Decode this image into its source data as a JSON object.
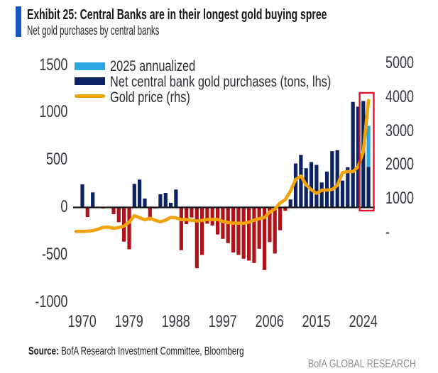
{
  "header": {
    "exhibit_title": "Exhibit 25: Central Banks are in their longest gold buying spree",
    "subtitle": "Net gold purchases by central banks"
  },
  "colors": {
    "accent_bar": "#1757C2",
    "navy_bar": "#0B2264",
    "negative_bar": "#B01217",
    "annualized_bar": "#2AA9E0",
    "gold_line": "#F2A30A",
    "highlight_box": "#E8112D",
    "axis_line": "#111111",
    "tick_text": "#36363e",
    "brand_text": "#8F8F8F"
  },
  "legend": {
    "items": [
      {
        "label": "2025 annualized",
        "swatch": "box",
        "color": "#2AA9E0"
      },
      {
        "label": "Net central bank gold purchases (tons, lhs)",
        "swatch": "box",
        "color": "#0B2264"
      },
      {
        "label": "Gold price (rhs)",
        "swatch": "line",
        "color": "#F2A30A"
      }
    ]
  },
  "chart_data": {
    "type": "bar",
    "title": "Net gold purchases by central banks",
    "x": [
      1970,
      1971,
      1972,
      1973,
      1974,
      1975,
      1976,
      1977,
      1978,
      1979,
      1980,
      1981,
      1982,
      1983,
      1984,
      1985,
      1986,
      1987,
      1988,
      1989,
      1990,
      1991,
      1992,
      1993,
      1994,
      1995,
      1996,
      1997,
      1998,
      1999,
      2000,
      2001,
      2002,
      2003,
      2004,
      2005,
      2006,
      2007,
      2008,
      2009,
      2010,
      2011,
      2012,
      2013,
      2014,
      2015,
      2016,
      2017,
      2018,
      2019,
      2020,
      2021,
      2022,
      2023,
      2024,
      2025
    ],
    "series": [
      {
        "name": "Net central bank gold purchases (tons, lhs)",
        "type": "bar",
        "axis": "left",
        "color_positive": "#0B2264",
        "color_negative": "#B01217",
        "values": [
          240,
          -105,
          155,
          0,
          -15,
          -10,
          -75,
          -160,
          -365,
          -445,
          245,
          290,
          90,
          -140,
          -15,
          135,
          150,
          45,
          185,
          -455,
          -180,
          -110,
          -645,
          -505,
          -175,
          -195,
          -290,
          -335,
          -380,
          -480,
          -505,
          -545,
          -565,
          -590,
          -440,
          -665,
          -370,
          -490,
          -245,
          -40,
          80,
          460,
          550,
          410,
          475,
          445,
          260,
          375,
          590,
          600,
          280,
          420,
          1110,
          1060,
          1120,
          425
        ]
      },
      {
        "name": "2025 annualized",
        "type": "bar_segment",
        "axis": "left",
        "color": "#2AA9E0",
        "year": 2025,
        "from_value": 425,
        "to_value": 858
      },
      {
        "name": "Gold price (rhs)",
        "type": "line",
        "axis": "right",
        "color": "#F2A30A",
        "values": [
          36,
          41,
          58,
          97,
          154,
          161,
          125,
          148,
          193,
          306,
          500,
          440,
          376,
          424,
          361,
          317,
          368,
          447,
          437,
          381,
          384,
          362,
          344,
          360,
          384,
          384,
          388,
          331,
          294,
          279,
          279,
          271,
          310,
          363,
          410,
          445,
          603,
          695,
          872,
          972,
          1225,
          1570,
          1670,
          1410,
          1266,
          1160,
          1250,
          1257,
          1269,
          1393,
          1770,
          1800,
          1800,
          1940,
          2390,
          3900
        ]
      }
    ],
    "left_axis": {
      "labels": [
        "1500",
        "1000",
        "500",
        "0",
        "-500",
        "-1000"
      ],
      "values": [
        1500,
        1000,
        500,
        0,
        -500,
        -1000
      ],
      "range": [
        -1000,
        1500
      ]
    },
    "right_axis": {
      "labels": [
        "5000",
        "4000",
        "3000",
        "2000",
        "1000",
        "-"
      ],
      "values": [
        5000,
        4000,
        3000,
        2000,
        1000,
        0
      ],
      "range": [
        0,
        5000
      ]
    },
    "x_axis": {
      "labels": [
        "1970",
        "1979",
        "1988",
        "1997",
        "2006",
        "2015",
        "2024"
      ],
      "values": [
        1970,
        1979,
        1988,
        1997,
        2006,
        2015,
        2024
      ]
    },
    "highlight_box": {
      "from_year": 2024,
      "to_year": 2025,
      "color": "#E8112D"
    },
    "grid": false,
    "legend_position": "top-left"
  },
  "footer": {
    "source_label": "Source:",
    "source_text": " BofA Research Investment Committee, Bloomberg",
    "brand": "BofA GLOBAL RESEARCH"
  }
}
